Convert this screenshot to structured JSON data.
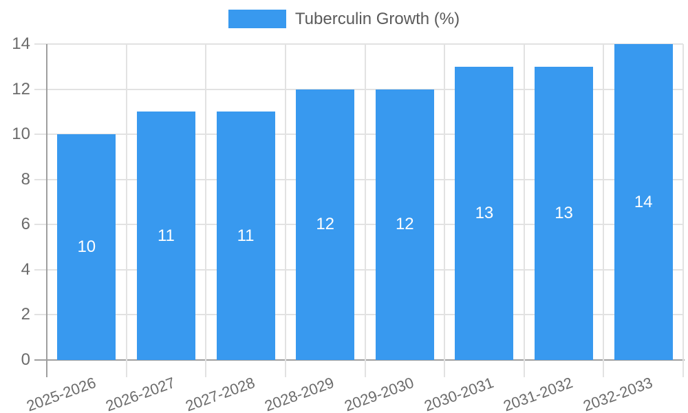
{
  "page": {
    "background": "#ffffff"
  },
  "legend": {
    "label": "Tuberculin Growth (%)"
  },
  "colors": {
    "bar": "#3899ef",
    "grid": "#e2e2e2",
    "axis": "#9e9e9e",
    "tick_text": "#6b6b6b",
    "legend_text": "#5a5a5a",
    "data_label": "#ffffff",
    "background": "#ffffff"
  },
  "chart_data": {
    "type": "bar",
    "title": "Tuberculin Growth (%)",
    "categories": [
      "2025-2026",
      "2026-2027",
      "2027-2028",
      "2028-2029",
      "2029-2030",
      "2030-2031",
      "2031-2032",
      "2032-2033"
    ],
    "values": [
      10,
      11,
      11,
      12,
      12,
      13,
      13,
      14
    ],
    "series": [
      {
        "name": "Tuberculin Growth (%)",
        "values": [
          10,
          11,
          11,
          12,
          12,
          13,
          13,
          14
        ]
      }
    ],
    "xlabel": "",
    "ylabel": "",
    "ylim": [
      0,
      14
    ],
    "yticks": [
      0,
      2,
      4,
      6,
      8,
      10,
      12,
      14
    ],
    "grid": true,
    "legend_position": "top-center",
    "data_labels_position": "inside-center"
  }
}
